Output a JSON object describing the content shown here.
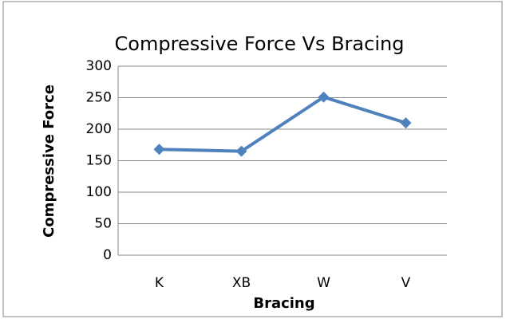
{
  "chart_data": {
    "type": "line",
    "title": "Compressive Force Vs Bracing",
    "x_label": "Bracing",
    "y_label": "Compressive Force",
    "categories": [
      "K",
      "XB",
      "W",
      "V"
    ],
    "series": [
      {
        "name": "Compressive Force",
        "color": "#4f81bd",
        "values": [
          168,
          165,
          251,
          210
        ]
      }
    ],
    "ylim": [
      0,
      300
    ],
    "yticks": [
      0,
      50,
      100,
      150,
      200,
      250,
      300
    ],
    "grid": true
  }
}
